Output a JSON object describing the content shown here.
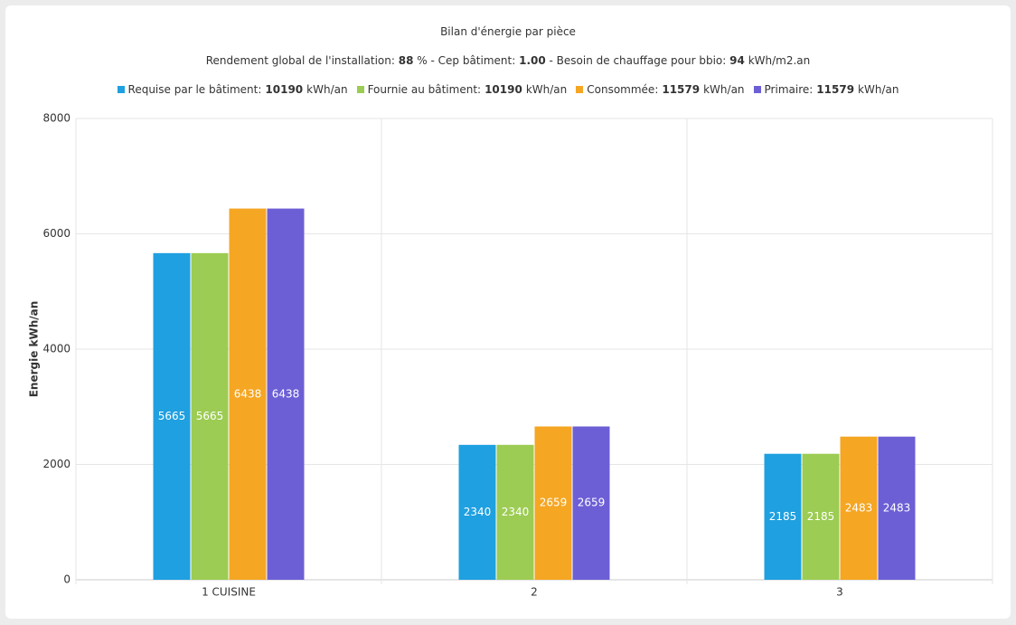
{
  "chart_data": {
    "type": "bar",
    "title": "Bilan d'énergie par pièce",
    "subtitle": [
      "Rendement global de l'installation:",
      88,
      "% - Cep bâtiment:",
      {
        "value": 1,
        "label": "1.00"
      },
      "- Besoin de chauffage pour bbio:",
      94,
      "kWh/m2.an"
    ],
    "y_label": "Energie kWh/an",
    "categories": [
      "1 CUISINE",
      "2",
      "3"
    ],
    "series": [
      {
        "name": "Requise par le bâtiment:",
        "total": 10190,
        "unit": "kWh/an",
        "color": "#1fa0e0",
        "values": [
          5665,
          2340,
          2185
        ]
      },
      {
        "name": "Fournie au bâtiment:",
        "total": 10190,
        "unit": "kWh/an",
        "color": "#9ccc53",
        "values": [
          5665,
          2340,
          2185
        ]
      },
      {
        "name": "Consommée:",
        "total": 11579,
        "unit": "kWh/an",
        "color": "#f5a623",
        "values": [
          6438,
          2659,
          2483
        ]
      },
      {
        "name": "Primaire:",
        "total": 11579,
        "unit": "kWh/an",
        "color": "#6c5fd5",
        "values": [
          6438,
          2659,
          2483
        ]
      }
    ],
    "ylim": [
      0,
      8000
    ],
    "yticks": [
      0,
      2000,
      4000,
      6000,
      8000
    ],
    "grid": true
  }
}
